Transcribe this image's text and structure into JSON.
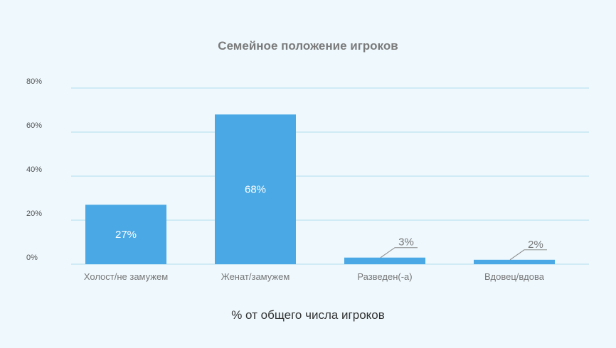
{
  "chart_data": {
    "type": "bar",
    "title": "Семейное положение игроков",
    "xlabel": "% от общего числа игроков",
    "ylabel": "",
    "categories": [
      "Холост/не замужем",
      "Женат/замужем",
      "Разведен(-а)",
      "Вдовец/вдова"
    ],
    "values": [
      27,
      68,
      3,
      2
    ],
    "data_labels": [
      "27%",
      "68%",
      "3%",
      "2%"
    ],
    "ylim": [
      0,
      80
    ],
    "yticks": [
      0,
      20,
      40,
      60,
      80
    ],
    "ytick_labels": [
      "0%",
      "20%",
      "40%",
      "60%",
      "80%"
    ],
    "grid": true,
    "colors": {
      "bar": "#4aa8e4",
      "grid": "#bfe3f2",
      "background": "#eef8fd"
    }
  }
}
